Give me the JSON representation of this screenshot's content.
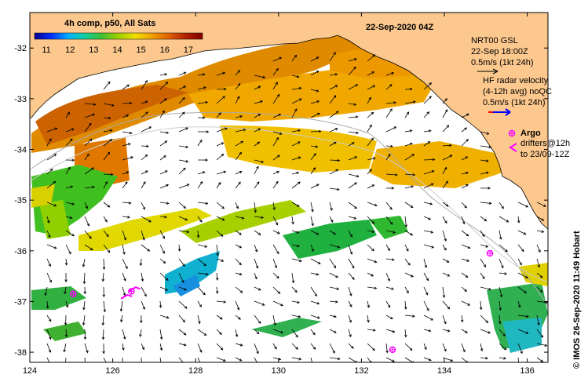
{
  "title": "22-Sep-2020 04Z",
  "colorbar": {
    "label": "4h comp, p50, All Sats",
    "ticks": [
      "11",
      "12",
      "13",
      "14",
      "15",
      "16",
      "17"
    ],
    "min": 10.5,
    "max": 17.6,
    "stops": [
      "#00008f",
      "#0030ff",
      "#00b0ff",
      "#10d0a0",
      "#40c030",
      "#a0d000",
      "#f0e000",
      "#f0a000",
      "#e06000",
      "#b02000",
      "#800000"
    ]
  },
  "axes": {
    "x_ticks": [
      "124",
      "126",
      "128",
      "130",
      "132",
      "134",
      "136"
    ],
    "y_ticks": [
      "-32",
      "-33",
      "-34",
      "-35",
      "-36",
      "-37",
      "-38"
    ],
    "xlim": [
      124,
      136.5
    ],
    "ylim": [
      -38.2,
      -31.3
    ]
  },
  "legend": {
    "gsl_title": "NRT00 GSL",
    "gsl_time": "22-Sep 18:00Z",
    "gsl_scale": "0.5m/s (1kt 24h)",
    "hf_title": "HF radar velocity",
    "hf_avg": "(4-12h avg) noQC",
    "hf_scale": "0.5m/s (1kt 24h)",
    "argo_label": "Argo",
    "drifters_line1": "drifters@12h",
    "drifters_line2": "to 23/09-12Z"
  },
  "credit": "© IMOS 26-Sep-2020 11:49 Hobart",
  "colors": {
    "land": "#fcc88e",
    "argo": "#ff00ff",
    "hf_arrow": "#0000ff",
    "hf_arrow_tail": "#ff0000",
    "contour": "#aaaaaa"
  },
  "argo_floats": [
    [
      125.05,
      -36.85
    ],
    [
      126.45,
      -36.8
    ],
    [
      135.1,
      -36.05
    ],
    [
      132.75,
      -37.95
    ]
  ],
  "drifters": [
    [
      126.35,
      -36.9
    ],
    [
      126.55,
      -36.75
    ]
  ]
}
